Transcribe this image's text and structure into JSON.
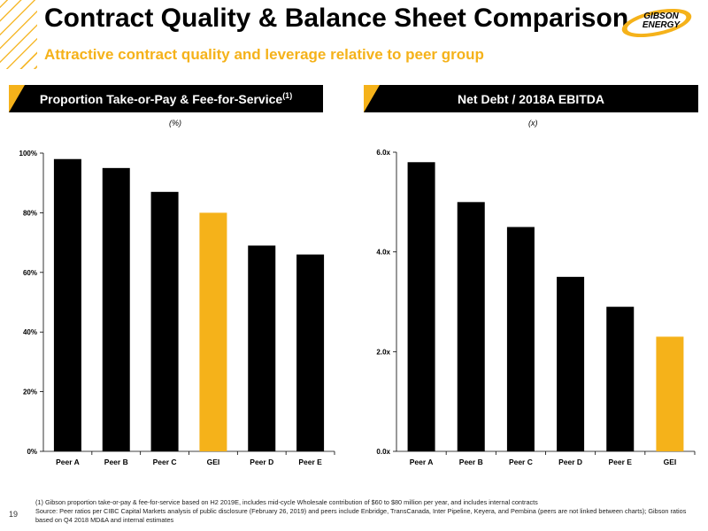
{
  "header": {
    "title": "Contract Quality & Balance Sheet Comparison",
    "subtitle": "Attractive contract quality and leverage relative to peer group",
    "logo_line1": "GIBSON",
    "logo_line2": "ENERGY"
  },
  "colors": {
    "accent": "#f5b21a",
    "bar": "#000000",
    "highlight": "#f5b21a"
  },
  "left_panel": {
    "header": "Proportion Take-or-Pay & Fee-for-Service",
    "header_sup": "(1)",
    "unit": "(%)"
  },
  "right_panel": {
    "header": "Net Debt / 2018A EBITDA",
    "unit": "(x)"
  },
  "chart_data": [
    {
      "type": "bar",
      "categories": [
        "Peer A",
        "Peer B",
        "Peer C",
        "GEI",
        "Peer D",
        "Peer E"
      ],
      "values": [
        98,
        95,
        87,
        80,
        69,
        66
      ],
      "highlight": "GEI",
      "ylim": [
        0,
        100
      ],
      "yticks": [
        0,
        20,
        40,
        60,
        80,
        100
      ],
      "ytick_labels": [
        "0%",
        "20%",
        "40%",
        "60%",
        "80%",
        "100%"
      ],
      "grid": false
    },
    {
      "type": "bar",
      "categories": [
        "Peer A",
        "Peer B",
        "Peer C",
        "Peer D",
        "Peer E",
        "GEI"
      ],
      "values": [
        5.8,
        5.0,
        4.5,
        3.5,
        2.9,
        2.3
      ],
      "highlight": "GEI",
      "ylim": [
        0,
        6
      ],
      "yticks": [
        0,
        2,
        4,
        6
      ],
      "ytick_labels": [
        "0.0x",
        "2.0x",
        "4.0x",
        "6.0x"
      ],
      "grid": false
    }
  ],
  "footnotes": {
    "note1": "(1)     Gibson proportion take-or-pay & fee-for-service based on H2 2019E, includes mid-cycle Wholesale contribution of $60 to $80 million per year, and includes internal contracts",
    "source": "Source: Peer ratios per CIBC Capital Markets analysis of public disclosure (February 26, 2019) and peers include Enbridge, TransCanada, Inter Pipeline, Keyera, and Pembina (peers are not linked between charts); Gibson ratios based on Q4 2018 MD&A and internal estimates"
  },
  "page_number": "19"
}
